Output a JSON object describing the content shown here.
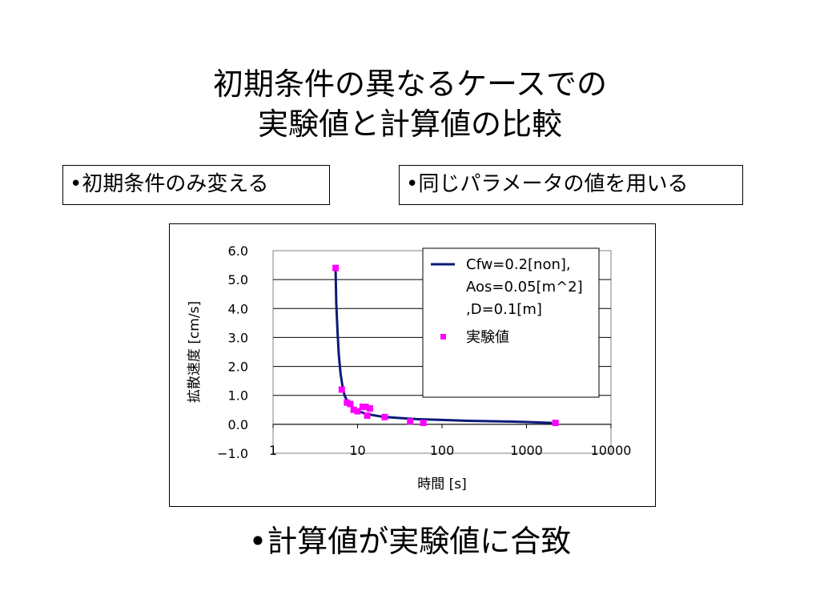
{
  "slide": {
    "title_line1": "初期条件の異なるケースでの",
    "title_line2": "実験値と計算値の比較",
    "bullet_left": "•初期条件のみ変える",
    "bullet_right": "•同じパラメータの値を用いる",
    "conclusion": "•計算値が実験値に合致"
  },
  "chart_data": {
    "type": "scatter",
    "title": "",
    "xlabel": "時間 [s]",
    "ylabel": "拡散速度 [cm/s]",
    "x_scale": "log",
    "xlim": [
      1,
      10000
    ],
    "ylim": [
      -1.0,
      6.0
    ],
    "x_ticks": [
      "1",
      "10",
      "100",
      "1000",
      "10000"
    ],
    "y_ticks": [
      "6.0",
      "5.0",
      "4.0",
      "3.0",
      "2.0",
      "1.0",
      "0.0",
      "−1.0"
    ],
    "grid": "horizontal",
    "legend_position": "top-right",
    "colors": {
      "line": "#0a1a78",
      "points": "#ff00ff"
    },
    "series": [
      {
        "name": "Cfw=0.2[non], Aos=0.05[m^2] ,D=0.1[m]",
        "legend_lines": [
          "Cfw=0.2[non],",
          "Aos=0.05[m^2]",
          ",D=0.1[m]"
        ],
        "kind": "line",
        "x": [
          5.5,
          5.6,
          5.8,
          6.0,
          6.3,
          6.6,
          7.0,
          7.5,
          8,
          9,
          10,
          12,
          15,
          20,
          30,
          50,
          100,
          200,
          500,
          1000,
          2000
        ],
        "y": [
          5.3,
          4.2,
          3.2,
          2.4,
          1.75,
          1.35,
          1.0,
          0.82,
          0.7,
          0.55,
          0.47,
          0.38,
          0.32,
          0.26,
          0.22,
          0.18,
          0.15,
          0.12,
          0.1,
          0.08,
          0.05
        ]
      },
      {
        "name": "実験値",
        "kind": "scatter",
        "x": [
          5.5,
          6.5,
          7.5,
          8.2,
          9.0,
          10.0,
          11.5,
          12.5,
          13.0,
          14.0,
          21,
          42,
          60,
          2200
        ],
        "y": [
          5.4,
          1.2,
          0.75,
          0.7,
          0.5,
          0.45,
          0.6,
          0.6,
          0.3,
          0.55,
          0.25,
          0.1,
          0.05,
          0.05
        ]
      }
    ]
  }
}
